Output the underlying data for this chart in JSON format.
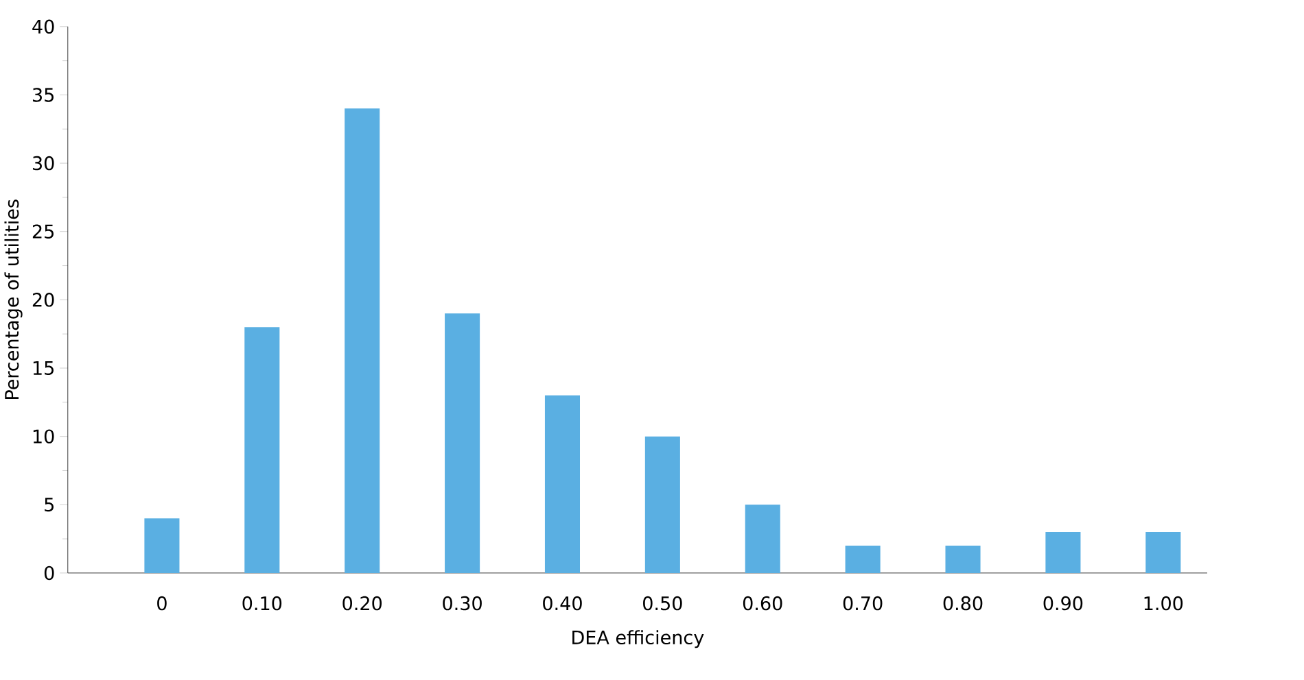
{
  "chart_data": {
    "type": "bar",
    "xlabel": "DEA efficiency",
    "ylabel": "Percentage of utilities",
    "categories": [
      "0",
      "0.10",
      "0.20",
      "0.30",
      "0.40",
      "0.50",
      "0.60",
      "0.70",
      "0.80",
      "0.90",
      "1.00"
    ],
    "values": [
      4,
      18,
      34,
      19,
      13,
      10,
      5,
      2,
      2,
      3,
      3
    ],
    "color": "#5aafe2",
    "ylim": [
      0,
      40
    ],
    "yticks": [
      0,
      5,
      10,
      15,
      20,
      25,
      30,
      35,
      40
    ]
  }
}
